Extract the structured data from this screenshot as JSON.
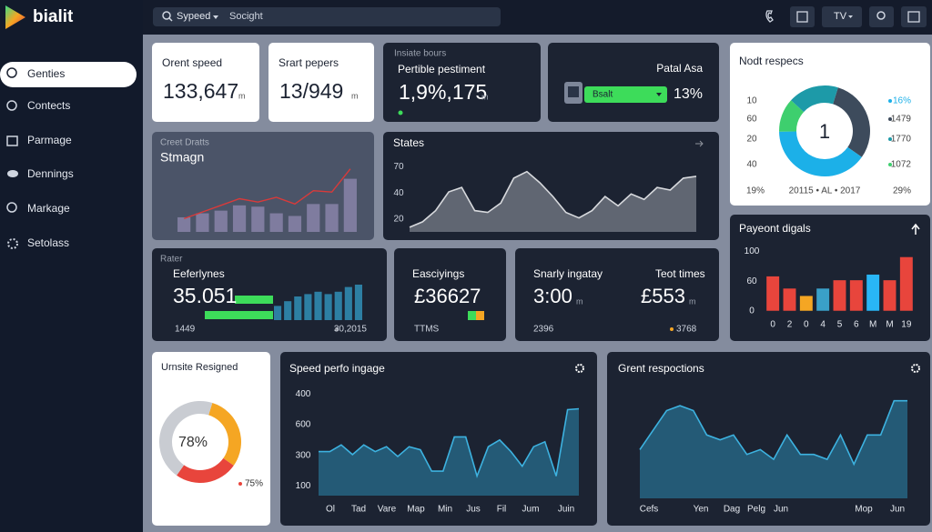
{
  "brand": "bialit",
  "nav": [
    "Genties",
    "Contects",
    "Parmage",
    "Dennings",
    "Markage",
    "Setolass"
  ],
  "search": {
    "filter": "Sypeed",
    "query": "Socight"
  },
  "toolbar_menu": "TV",
  "orent_speed": {
    "title": "Orent speed",
    "value": "133,647",
    "unit": "m"
  },
  "srart_pepers": {
    "title": "Srart pepers",
    "value": "13/949",
    "unit": "m"
  },
  "insiate": {
    "label": "Insiate bours",
    "title": "Pertible pestiment",
    "value": "1,9%,175",
    "unit": "m"
  },
  "patal": {
    "title": "Patal Asa",
    "select": "Bsalt",
    "value": "13%"
  },
  "nodt": {
    "type": "donut",
    "title": "Nodt respecs",
    "center": "1",
    "left_labels": [
      "10",
      "60",
      "20",
      "40"
    ],
    "right_labels": [
      "16%",
      "1479",
      "1770",
      "1072"
    ],
    "footer": [
      "19%",
      "20115 • AL • 2017",
      "29%"
    ],
    "values": [
      30,
      40,
      12,
      18
    ],
    "colors": [
      "#3d4b5c",
      "#1cb0e8",
      "#3ecf6e",
      "#1d9aa8"
    ]
  },
  "creet": {
    "type": "bar_line",
    "label": "Creet Dratts",
    "title": "Stmagn",
    "bars": [
      22,
      28,
      32,
      40,
      38,
      28,
      24,
      42,
      42,
      80
    ],
    "line": [
      20,
      30,
      40,
      50,
      45,
      52,
      42,
      62,
      60,
      95
    ],
    "bar_color": "#8c86ad",
    "line_color": "#d93a3a",
    "ylim": [
      0,
      100
    ]
  },
  "states": {
    "type": "area",
    "title": "States",
    "values": [
      -0.32,
      -0.11,
      0.32,
      1.04,
      1.21,
      0.32,
      0.25,
      0.61,
      1.57,
      1.82,
      1.39,
      0.86,
      0.25,
      0.04,
      0.32,
      0.86,
      0.5,
      0.96,
      0.75,
      1.21,
      1.11,
      1.57,
      1.64
    ],
    "ylim": [
      -0.5,
      2.3
    ],
    "yticks": [
      {
        "value": 2,
        "label": "70"
      },
      {
        "value": 1,
        "label": "40"
      },
      {
        "value": 0,
        "label": "20"
      }
    ],
    "color": "#8e939c",
    "line_color": "#d7d9dd"
  },
  "payeont": {
    "type": "bar",
    "title": "Payeont digals",
    "categories": [
      "0",
      "2",
      "0",
      "4",
      "5",
      "6",
      "M",
      "M",
      "19"
    ],
    "values": [
      1.16,
      0.75,
      0.5,
      0.75,
      1.03,
      1.03,
      1.22,
      1.03,
      1.81
    ],
    "colors": [
      "#e8453c",
      "#e8453c",
      "#f5a623",
      "#3aa0c8",
      "#e8453c",
      "#e8453c",
      "#29b6f6",
      "#e8453c",
      "#e8453c"
    ],
    "ylim": [
      -0.1,
      2.2
    ],
    "yticks": [
      {
        "value": 2,
        "label": "100"
      },
      {
        "value": 1,
        "label": "60"
      },
      0
    ]
  },
  "rater": {
    "type": "bar",
    "label": "Rater",
    "title": "Eeferlynes",
    "value": "35.051",
    "left_note": "1449",
    "right_note": "30,2015",
    "values": [
      30,
      40,
      50,
      55,
      60,
      55,
      60,
      70,
      75
    ],
    "color": "#2d7fa3",
    "ylim": [
      0,
      100
    ]
  },
  "easciyings": {
    "title": "Easciyings",
    "value": "£36627",
    "note": "TTMS"
  },
  "snarly": {
    "title": "Snarly ingatay",
    "value": "3:00",
    "unit": "m",
    "title2": "Teot times",
    "value2": "£553",
    "unit2": "m",
    "note": "2396",
    "note2": "3768"
  },
  "urnsite": {
    "type": "donut",
    "title": "Urnsite Resigned",
    "center": "78%",
    "note": "75%",
    "values": [
      30,
      25,
      45
    ],
    "colors": [
      "#f5a623",
      "#e8453c",
      "#c9ccd2"
    ]
  },
  "speed": {
    "type": "area",
    "title": "Speed perfo ingage",
    "x_labels": [
      "Ol",
      "Tad",
      "Vare",
      "Map",
      "Min",
      "Jus",
      "Fil",
      "Jum",
      "Juin"
    ],
    "values": [
      1.12,
      1.12,
      1.34,
      1.02,
      1.34,
      1.12,
      1.28,
      0.96,
      1.28,
      1.18,
      0.48,
      0.48,
      1.6,
      1.6,
      0.32,
      1.28,
      1.5,
      1.12,
      0.64,
      1.28,
      1.44,
      0.32,
      2.49,
      2.52
    ],
    "ylim": [
      -0.32,
      3.1
    ],
    "yticks": [
      {
        "value": 3,
        "label": "400"
      },
      {
        "value": 2,
        "label": "600"
      },
      {
        "value": 1,
        "label": "300"
      },
      {
        "value": 0,
        "label": "100"
      }
    ],
    "color": "#2a7fa4",
    "line_color": "#3db2e0"
  },
  "grent": {
    "type": "area",
    "title": "Grent respoctions",
    "x_labels": [
      "Cefs",
      "Yen",
      "Dag",
      "Pelg",
      "Jun",
      "Mop",
      "Jun"
    ],
    "values": [
      50,
      70,
      90,
      95,
      90,
      65,
      60,
      65,
      45,
      50,
      40,
      65,
      45,
      45,
      40,
      65,
      35,
      65,
      65,
      100,
      100
    ],
    "ylim": [
      0,
      110
    ],
    "color": "#2a7fa4",
    "line_color": "#3db2e0"
  }
}
